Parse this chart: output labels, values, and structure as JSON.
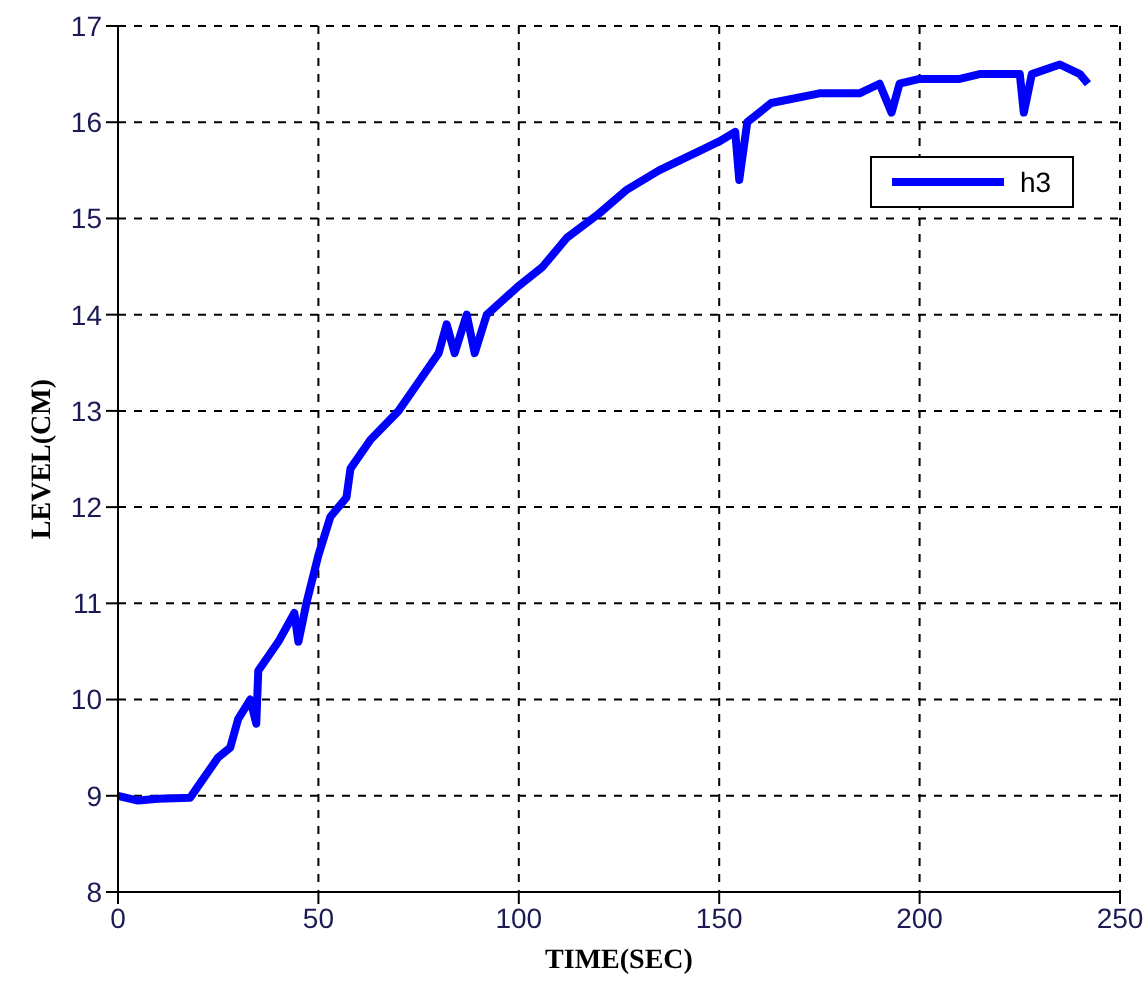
{
  "chart_data": {
    "type": "line",
    "xlabel": "TIME(SEC)",
    "ylabel": "LEVEL(CM)",
    "xlim": [
      0,
      250
    ],
    "xticks": [
      0,
      50,
      100,
      150,
      200,
      250
    ],
    "ylim": [
      8,
      17
    ],
    "yticks": [
      8,
      9,
      10,
      11,
      12,
      13,
      14,
      15,
      16,
      17
    ],
    "grid": true,
    "legend": "top right",
    "series": [
      {
        "name": "h3",
        "color": "#0000ff",
        "x": [
          0,
          5,
          10,
          18,
          20,
          25,
          28,
          30,
          33,
          34.5,
          35,
          40,
          44,
          45,
          47,
          50,
          53,
          57,
          58,
          63,
          70,
          75,
          80,
          82,
          84,
          87,
          89,
          92,
          100,
          106,
          112,
          120,
          127,
          135,
          145,
          150,
          154,
          155,
          157,
          163,
          175,
          185,
          190,
          193,
          195,
          200,
          210,
          215,
          225,
          226,
          228,
          235,
          240,
          242
        ],
        "values": [
          9.0,
          8.95,
          8.97,
          8.98,
          9.1,
          9.4,
          9.5,
          9.8,
          10.0,
          9.75,
          10.3,
          10.6,
          10.9,
          10.6,
          11.0,
          11.5,
          11.9,
          12.1,
          12.4,
          12.7,
          13.0,
          13.3,
          13.6,
          13.9,
          13.6,
          14.0,
          13.6,
          14.0,
          14.3,
          14.5,
          14.8,
          15.05,
          15.3,
          15.5,
          15.7,
          15.8,
          15.9,
          15.4,
          16.0,
          16.2,
          16.3,
          16.3,
          16.4,
          16.1,
          16.4,
          16.45,
          16.45,
          16.5,
          16.5,
          16.1,
          16.5,
          16.6,
          16.5,
          16.4
        ]
      }
    ]
  }
}
